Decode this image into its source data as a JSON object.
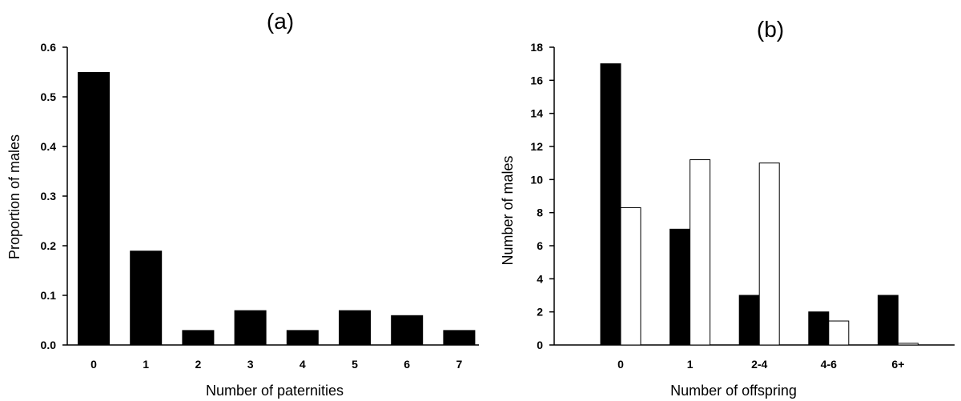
{
  "chart_data": [
    {
      "type": "bar",
      "title": "(a)",
      "xlabel": "Number of paternities",
      "ylabel": "Proportion of males",
      "categories": [
        "0",
        "1",
        "2",
        "3",
        "4",
        "5",
        "6",
        "7"
      ],
      "values": [
        0.55,
        0.19,
        0.03,
        0.07,
        0.03,
        0.07,
        0.06,
        0.03
      ],
      "ylim": [
        0,
        0.6
      ],
      "yticks": [
        "0.0",
        "0.1",
        "0.2",
        "0.3",
        "0.4",
        "0.5",
        "0.6"
      ],
      "grid": false,
      "colors": {
        "bar": "#000000"
      }
    },
    {
      "type": "bar",
      "title": "(b)",
      "xlabel": "Number of offspring",
      "ylabel": "Number of males",
      "categories": [
        "0",
        "1",
        "2-4",
        "4-6",
        "6+"
      ],
      "series": [
        {
          "values": [
            17,
            7,
            3,
            2,
            3
          ],
          "color": "#000000"
        },
        {
          "values": [
            8.3,
            11.2,
            11.0,
            1.45,
            0.1
          ],
          "color": "#ffffff"
        }
      ],
      "ylim": [
        0,
        18
      ],
      "yticks": [
        "0",
        "2",
        "4",
        "6",
        "8",
        "10",
        "12",
        "14",
        "16",
        "18"
      ],
      "grid": false
    }
  ]
}
